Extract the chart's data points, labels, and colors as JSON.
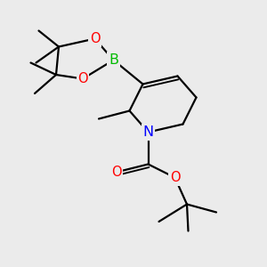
{
  "bg_color": "#ebebeb",
  "atom_colors": {
    "C": "#000000",
    "N": "#0000ff",
    "O": "#ff0000",
    "B": "#00bb00"
  },
  "bond_color": "#000000",
  "bond_width": 1.6,
  "font_size": 10.5
}
